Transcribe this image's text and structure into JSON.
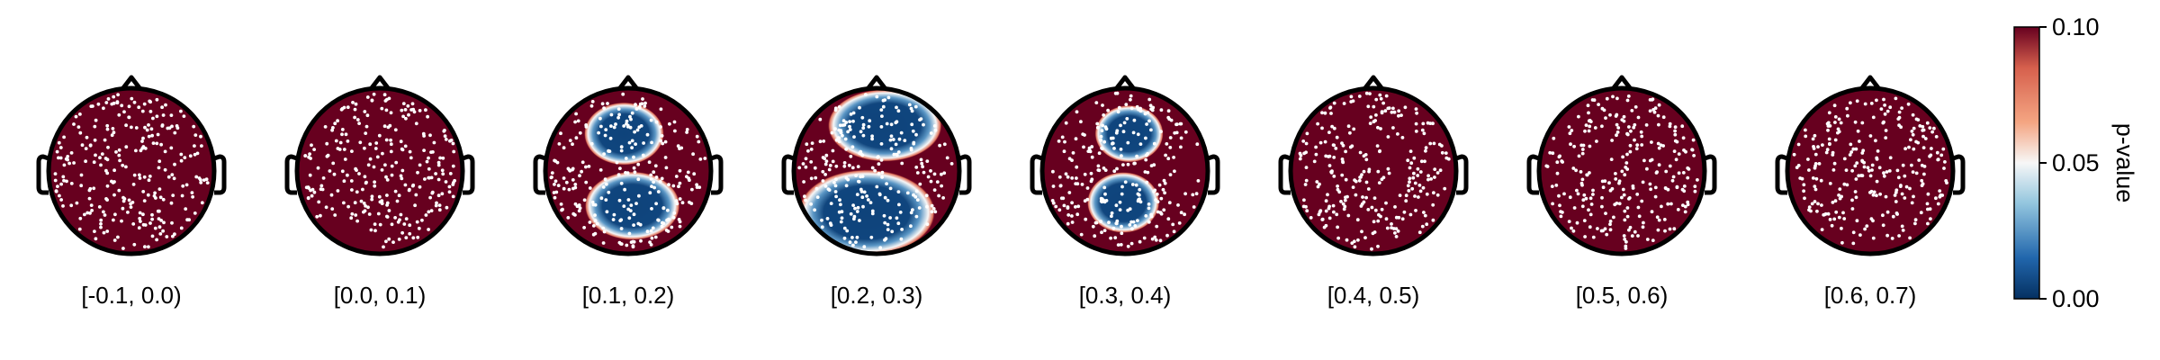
{
  "chart_data": {
    "type": "heatmap",
    "description_kind": "topoplot-series",
    "panels": [
      {
        "label": "[-0.1, 0.0)",
        "clusters": []
      },
      {
        "label": "[0.0, 0.1)",
        "clusters": []
      },
      {
        "label": "[0.1, 0.2)",
        "clusters": [
          {
            "cx": -0.05,
            "cy": -0.45,
            "rx": 0.42,
            "ry": 0.33,
            "value": 0.0
          },
          {
            "cx": 0.05,
            "cy": 0.42,
            "rx": 0.5,
            "ry": 0.36,
            "value": 0.0
          }
        ]
      },
      {
        "label": "[0.2, 0.3)",
        "clusters": [
          {
            "cx": 0.1,
            "cy": -0.55,
            "rx": 0.6,
            "ry": 0.38,
            "value": 0.0
          },
          {
            "cx": -0.12,
            "cy": 0.5,
            "rx": 0.72,
            "ry": 0.45,
            "value": 0.0
          }
        ]
      },
      {
        "label": "[0.3, 0.4)",
        "clusters": [
          {
            "cx": 0.05,
            "cy": -0.45,
            "rx": 0.36,
            "ry": 0.3,
            "value": 0.0
          },
          {
            "cx": -0.02,
            "cy": 0.38,
            "rx": 0.38,
            "ry": 0.32,
            "value": 0.0
          }
        ]
      },
      {
        "label": "[0.4, 0.5)",
        "clusters": []
      },
      {
        "label": "[0.5, 0.6)",
        "clusters": []
      },
      {
        "label": "[0.6, 0.7)",
        "clusters": []
      }
    ],
    "colorbar": {
      "title": "p-value",
      "ticks": [
        "0.00",
        "0.05",
        "0.10"
      ],
      "range": [
        0.0,
        0.1
      ],
      "colormap": "RdBu",
      "colors": {
        "low": "#053061",
        "mid": "#f7f7f7",
        "high": "#67001f"
      }
    },
    "background_value": 0.1,
    "electrode_color": "#ffffff",
    "head_outline_color": "#000000"
  }
}
